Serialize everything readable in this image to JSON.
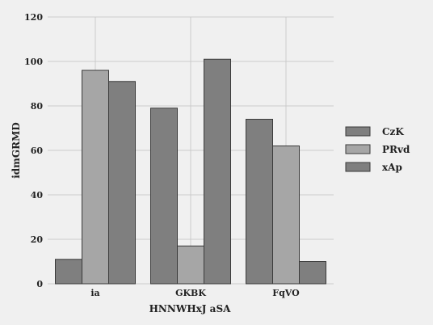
{
  "chart_data": {
    "type": "bar",
    "title": "",
    "xlabel": "HNNWHxJ aSA",
    "ylabel": "idmGRMD",
    "categories": [
      "ia",
      "GKBK",
      "FqVO"
    ],
    "series": [
      {
        "name": "CzK",
        "values": [
          11,
          79,
          74
        ],
        "color": "#7f7f7f"
      },
      {
        "name": "PRvd",
        "values": [
          96,
          17,
          62
        ],
        "color": "#a6a6a6"
      },
      {
        "name": "xAp",
        "values": [
          91,
          101,
          10
        ],
        "color": "#7f7f7f"
      }
    ],
    "ylim": [
      0,
      120
    ],
    "yticks": [
      0,
      20,
      40,
      60,
      80,
      100,
      120
    ],
    "grid": true,
    "legend_position": "right",
    "background_color": "#f0f0f0",
    "grid_color": "#cbcbcb",
    "bar_edge_color": "#3a3a3a"
  }
}
